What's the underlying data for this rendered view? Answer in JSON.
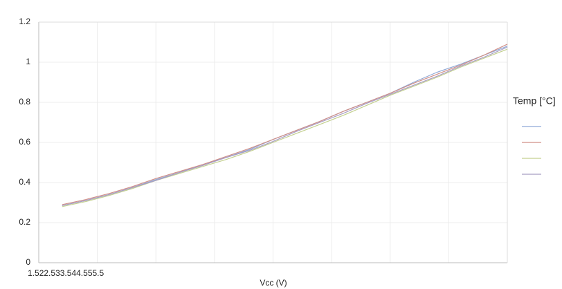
{
  "chart_data": {
    "type": "line",
    "x_label": "Vcc (V)",
    "legend_title": "Temp [°C]",
    "legend": "right",
    "grid": true,
    "xlim": [
      1.5,
      5.5
    ],
    "xticks": [
      1.5,
      2,
      2.5,
      3,
      3.5,
      4,
      4.5,
      5,
      5.5
    ],
    "ylim": [
      0,
      1.2
    ],
    "yticks": [
      0,
      0.2,
      0.4,
      0.6,
      0.8,
      1,
      1.2
    ],
    "x": [
      1.7,
      1.9,
      2.1,
      2.3,
      2.5,
      2.7,
      2.9,
      3.1,
      3.3,
      3.5,
      3.7,
      3.9,
      4.1,
      4.3,
      4.5,
      4.7,
      4.9,
      5.1,
      5.3,
      5.5
    ],
    "series": [
      {
        "color": "#8fa9d6",
        "values": [
          0.285,
          0.31,
          0.34,
          0.375,
          0.415,
          0.45,
          0.49,
          0.525,
          0.565,
          0.615,
          0.66,
          0.705,
          0.755,
          0.8,
          0.845,
          0.9,
          0.95,
          0.99,
          1.035,
          1.08
        ]
      },
      {
        "color": "#d08f88",
        "values": [
          0.29,
          0.315,
          0.345,
          0.38,
          0.42,
          0.455,
          0.49,
          0.53,
          0.57,
          0.615,
          0.66,
          0.705,
          0.755,
          0.8,
          0.845,
          0.895,
          0.94,
          0.985,
          1.035,
          1.09
        ]
      },
      {
        "color": "#c3d08f",
        "values": [
          0.28,
          0.305,
          0.335,
          0.37,
          0.41,
          0.445,
          0.48,
          0.515,
          0.555,
          0.6,
          0.645,
          0.69,
          0.735,
          0.785,
          0.835,
          0.88,
          0.925,
          0.975,
          1.02,
          1.065
        ]
      },
      {
        "color": "#a89dc2",
        "values": [
          0.285,
          0.31,
          0.34,
          0.375,
          0.41,
          0.45,
          0.485,
          0.525,
          0.56,
          0.605,
          0.655,
          0.7,
          0.745,
          0.795,
          0.84,
          0.885,
          0.93,
          0.98,
          1.025,
          1.075
        ]
      }
    ]
  }
}
